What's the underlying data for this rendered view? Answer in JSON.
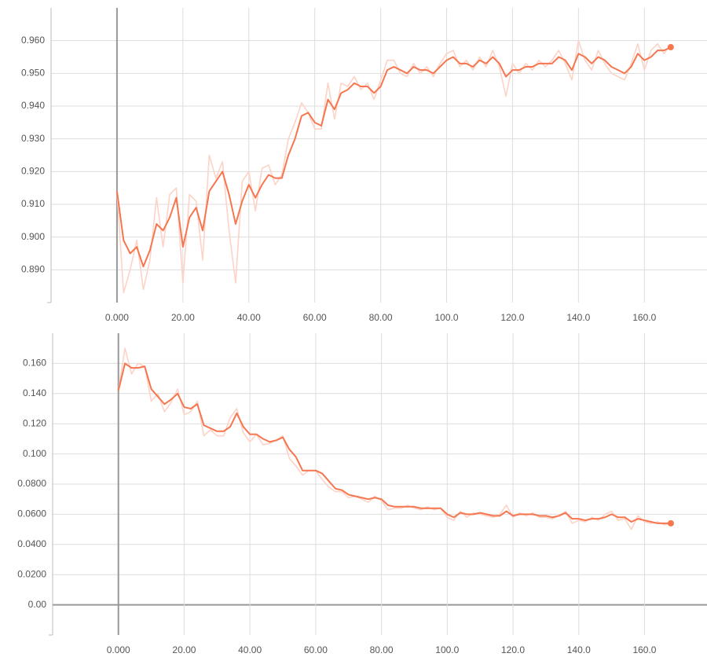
{
  "chart_data": [
    {
      "type": "line",
      "x": [
        0,
        2,
        4,
        6,
        8,
        10,
        12,
        14,
        16,
        18,
        20,
        22,
        24,
        26,
        28,
        30,
        32,
        34,
        36,
        38,
        40,
        42,
        44,
        46,
        48,
        50,
        52,
        54,
        56,
        58,
        60,
        62,
        64,
        66,
        68,
        70,
        72,
        74,
        76,
        78,
        80,
        82,
        84,
        86,
        88,
        90,
        92,
        94,
        96,
        98,
        100,
        102,
        104,
        106,
        108,
        110,
        112,
        114,
        116,
        118,
        120,
        122,
        124,
        126,
        128,
        130,
        132,
        134,
        136,
        138,
        140,
        142,
        144,
        146,
        148,
        150,
        152,
        154,
        156,
        158,
        160,
        162,
        164,
        166,
        168
      ],
      "series": [
        {
          "color": "#fcd3c6",
          "values": [
            0.914,
            0.883,
            0.89,
            0.899,
            0.884,
            0.893,
            0.912,
            0.897,
            0.913,
            0.915,
            0.886,
            0.913,
            0.911,
            0.893,
            0.925,
            0.918,
            0.923,
            0.902,
            0.886,
            0.917,
            0.92,
            0.908,
            0.921,
            0.922,
            0.916,
            0.919,
            0.93,
            0.935,
            0.941,
            0.938,
            0.933,
            0.933,
            0.947,
            0.936,
            0.947,
            0.946,
            0.949,
            0.945,
            0.947,
            0.942,
            0.948,
            0.954,
            0.954,
            0.95,
            0.949,
            0.953,
            0.95,
            0.952,
            0.949,
            0.953,
            0.956,
            0.957,
            0.952,
            0.954,
            0.951,
            0.955,
            0.952,
            0.957,
            0.952,
            0.943,
            0.953,
            0.95,
            0.953,
            0.951,
            0.954,
            0.952,
            0.954,
            0.957,
            0.953,
            0.948,
            0.96,
            0.954,
            0.951,
            0.957,
            0.953,
            0.95,
            0.949,
            0.948,
            0.953,
            0.959,
            0.951,
            0.957,
            0.959,
            0.956,
            0.959
          ]
        },
        {
          "color": "#f5764f",
          "values": [
            0.914,
            0.899,
            0.895,
            0.897,
            0.891,
            0.896,
            0.904,
            0.902,
            0.906,
            0.912,
            0.897,
            0.906,
            0.909,
            0.902,
            0.914,
            0.917,
            0.92,
            0.913,
            0.904,
            0.911,
            0.916,
            0.912,
            0.916,
            0.919,
            0.918,
            0.918,
            0.925,
            0.93,
            0.937,
            0.938,
            0.935,
            0.934,
            0.942,
            0.939,
            0.944,
            0.945,
            0.947,
            0.946,
            0.946,
            0.944,
            0.946,
            0.951,
            0.952,
            0.951,
            0.95,
            0.952,
            0.951,
            0.951,
            0.95,
            0.952,
            0.954,
            0.955,
            0.953,
            0.953,
            0.952,
            0.954,
            0.953,
            0.955,
            0.953,
            0.949,
            0.951,
            0.951,
            0.952,
            0.952,
            0.953,
            0.953,
            0.953,
            0.955,
            0.954,
            0.951,
            0.956,
            0.955,
            0.953,
            0.955,
            0.954,
            0.952,
            0.951,
            0.95,
            0.952,
            0.956,
            0.954,
            0.955,
            0.957,
            0.957,
            0.958
          ]
        }
      ],
      "xlim": [
        -20,
        179
      ],
      "ylim": [
        0.88,
        0.97
      ],
      "xticks": [
        {
          "value": 0,
          "label": "0.000"
        },
        {
          "value": 20,
          "label": "20.00"
        },
        {
          "value": 40,
          "label": "40.00"
        },
        {
          "value": 60,
          "label": "60.00"
        },
        {
          "value": 80,
          "label": "80.00"
        },
        {
          "value": 100,
          "label": "100.0"
        },
        {
          "value": 120,
          "label": "120.0"
        },
        {
          "value": 140,
          "label": "140.0"
        },
        {
          "value": 160,
          "label": "160.0"
        }
      ],
      "yticks": [
        {
          "value": 0.89,
          "label": "0.890"
        },
        {
          "value": 0.9,
          "label": "0.900"
        },
        {
          "value": 0.91,
          "label": "0.910"
        },
        {
          "value": 0.92,
          "label": "0.920"
        },
        {
          "value": 0.93,
          "label": "0.930"
        },
        {
          "value": 0.94,
          "label": "0.940"
        },
        {
          "value": 0.95,
          "label": "0.950"
        },
        {
          "value": 0.96,
          "label": "0.960"
        }
      ],
      "grid": true
    },
    {
      "type": "line",
      "x": [
        0,
        2,
        4,
        6,
        8,
        10,
        12,
        14,
        16,
        18,
        20,
        22,
        24,
        26,
        28,
        30,
        32,
        34,
        36,
        38,
        40,
        42,
        44,
        46,
        48,
        50,
        52,
        54,
        56,
        58,
        60,
        62,
        64,
        66,
        68,
        70,
        72,
        74,
        76,
        78,
        80,
        82,
        84,
        86,
        88,
        90,
        92,
        94,
        96,
        98,
        100,
        102,
        104,
        106,
        108,
        110,
        112,
        114,
        116,
        118,
        120,
        122,
        124,
        126,
        128,
        130,
        132,
        134,
        136,
        138,
        140,
        142,
        144,
        146,
        148,
        150,
        152,
        154,
        156,
        158,
        160,
        162,
        164,
        166,
        168
      ],
      "series": [
        {
          "color": "#fcd3c6",
          "values": [
            0.142,
            0.17,
            0.153,
            0.16,
            0.158,
            0.135,
            0.14,
            0.128,
            0.134,
            0.143,
            0.126,
            0.128,
            0.135,
            0.112,
            0.116,
            0.112,
            0.112,
            0.124,
            0.13,
            0.114,
            0.108,
            0.113,
            0.106,
            0.107,
            0.109,
            0.112,
            0.097,
            0.092,
            0.086,
            0.089,
            0.089,
            0.083,
            0.078,
            0.075,
            0.075,
            0.071,
            0.072,
            0.07,
            0.068,
            0.072,
            0.069,
            0.063,
            0.064,
            0.064,
            0.066,
            0.064,
            0.063,
            0.065,
            0.063,
            0.064,
            0.058,
            0.056,
            0.062,
            0.058,
            0.061,
            0.06,
            0.059,
            0.058,
            0.06,
            0.066,
            0.058,
            0.061,
            0.059,
            0.061,
            0.058,
            0.058,
            0.057,
            0.059,
            0.062,
            0.054,
            0.056,
            0.055,
            0.058,
            0.056,
            0.06,
            0.062,
            0.056,
            0.057,
            0.05,
            0.059,
            0.055,
            0.054,
            0.055,
            0.053,
            0.054
          ]
        },
        {
          "color": "#f5764f",
          "values": [
            0.142,
            0.16,
            0.157,
            0.157,
            0.158,
            0.143,
            0.138,
            0.133,
            0.136,
            0.14,
            0.131,
            0.13,
            0.133,
            0.119,
            0.117,
            0.115,
            0.115,
            0.118,
            0.127,
            0.118,
            0.113,
            0.113,
            0.11,
            0.108,
            0.109,
            0.111,
            0.103,
            0.098,
            0.089,
            0.089,
            0.089,
            0.087,
            0.082,
            0.077,
            0.076,
            0.073,
            0.072,
            0.071,
            0.07,
            0.071,
            0.07,
            0.066,
            0.065,
            0.065,
            0.065,
            0.065,
            0.064,
            0.064,
            0.064,
            0.064,
            0.06,
            0.058,
            0.061,
            0.06,
            0.06,
            0.061,
            0.06,
            0.059,
            0.059,
            0.062,
            0.059,
            0.06,
            0.06,
            0.06,
            0.059,
            0.059,
            0.058,
            0.059,
            0.061,
            0.057,
            0.057,
            0.056,
            0.057,
            0.057,
            0.058,
            0.06,
            0.058,
            0.058,
            0.055,
            0.057,
            0.056,
            0.055,
            0.054,
            0.054,
            0.054
          ]
        }
      ],
      "xlim": [
        -20,
        179
      ],
      "ylim": [
        -0.02,
        0.18
      ],
      "xticks": [
        {
          "value": 0,
          "label": "0.000"
        },
        {
          "value": 20,
          "label": "20.00"
        },
        {
          "value": 40,
          "label": "40.00"
        },
        {
          "value": 60,
          "label": "60.00"
        },
        {
          "value": 80,
          "label": "80.00"
        },
        {
          "value": 100,
          "label": "100.0"
        },
        {
          "value": 120,
          "label": "120.0"
        },
        {
          "value": 140,
          "label": "140.0"
        },
        {
          "value": 160,
          "label": "160.0"
        }
      ],
      "yticks": [
        {
          "value": 0,
          "label": "0.00"
        },
        {
          "value": 0.02,
          "label": "0.0200"
        },
        {
          "value": 0.04,
          "label": "0.0400"
        },
        {
          "value": 0.06,
          "label": "0.0600"
        },
        {
          "value": 0.08,
          "label": "0.0800"
        },
        {
          "value": 0.1,
          "label": "0.100"
        },
        {
          "value": 0.12,
          "label": "0.120"
        },
        {
          "value": 0.14,
          "label": "0.140"
        },
        {
          "value": 0.16,
          "label": "0.160"
        }
      ],
      "grid": true
    }
  ]
}
